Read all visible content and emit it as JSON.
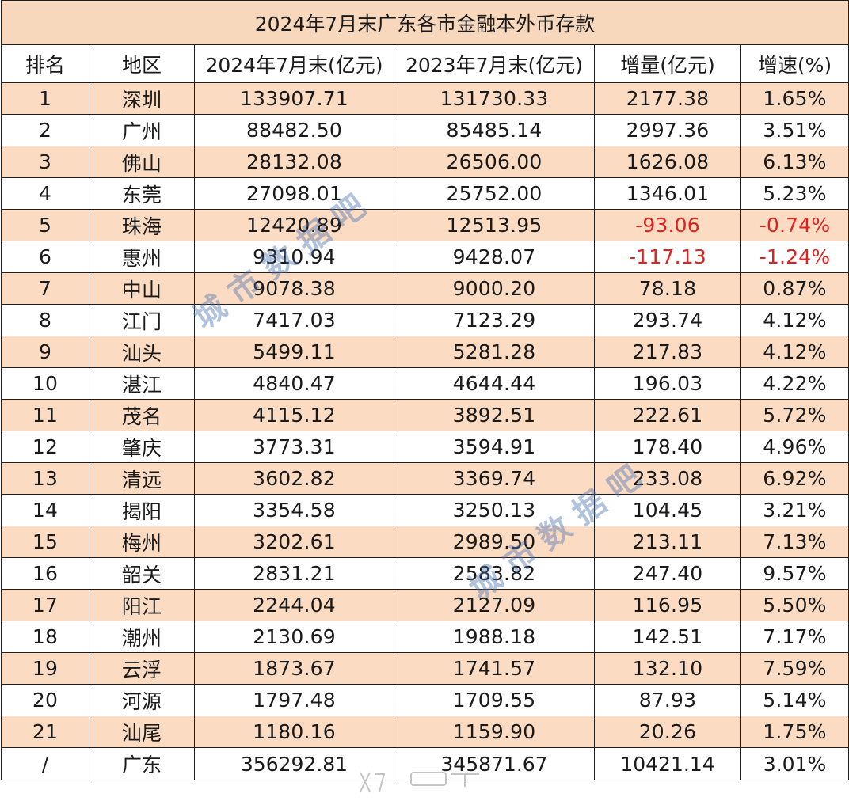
{
  "title": "2024年7月末广东各市金融本外币存款",
  "headers": [
    "排名",
    "地区",
    "2024年7月末(亿元)",
    "2023年7月末(亿元)",
    "增量(亿元)",
    "增速(%)"
  ],
  "rows": [
    {
      "rank": "1",
      "region": "深圳",
      "y2024": "133907.71",
      "y2023": "131730.33",
      "increase": "2177.38",
      "growth": "1.65%"
    },
    {
      "rank": "2",
      "region": "广州",
      "y2024": "88482.50",
      "y2023": "85485.14",
      "increase": "2997.36",
      "growth": "3.51%"
    },
    {
      "rank": "3",
      "region": "佛山",
      "y2024": "28132.08",
      "y2023": "26506.00",
      "increase": "1626.08",
      "growth": "6.13%"
    },
    {
      "rank": "4",
      "region": "东莞",
      "y2024": "27098.01",
      "y2023": "25752.00",
      "increase": "1346.01",
      "growth": "5.23%"
    },
    {
      "rank": "5",
      "region": "珠海",
      "y2024": "12420.89",
      "y2023": "12513.95",
      "increase": "-93.06",
      "growth": "-0.74%"
    },
    {
      "rank": "6",
      "region": "惠州",
      "y2024": "9310.94",
      "y2023": "9428.07",
      "increase": "-117.13",
      "growth": "-1.24%"
    },
    {
      "rank": "7",
      "region": "中山",
      "y2024": "9078.38",
      "y2023": "9000.20",
      "increase": "78.18",
      "growth": "0.87%"
    },
    {
      "rank": "8",
      "region": "江门",
      "y2024": "7417.03",
      "y2023": "7123.29",
      "increase": "293.74",
      "growth": "4.12%"
    },
    {
      "rank": "9",
      "region": "汕头",
      "y2024": "5499.11",
      "y2023": "5281.28",
      "increase": "217.83",
      "growth": "4.12%"
    },
    {
      "rank": "10",
      "region": "湛江",
      "y2024": "4840.47",
      "y2023": "4644.44",
      "increase": "196.03",
      "growth": "4.22%"
    },
    {
      "rank": "11",
      "region": "茂名",
      "y2024": "4115.12",
      "y2023": "3892.51",
      "increase": "222.61",
      "growth": "5.72%"
    },
    {
      "rank": "12",
      "region": "肇庆",
      "y2024": "3773.31",
      "y2023": "3594.91",
      "increase": "178.40",
      "growth": "4.96%"
    },
    {
      "rank": "13",
      "region": "清远",
      "y2024": "3602.82",
      "y2023": "3369.74",
      "increase": "233.08",
      "growth": "6.92%"
    },
    {
      "rank": "14",
      "region": "揭阳",
      "y2024": "3354.58",
      "y2023": "3250.13",
      "increase": "104.45",
      "growth": "3.21%"
    },
    {
      "rank": "15",
      "region": "梅州",
      "y2024": "3202.61",
      "y2023": "2989.50",
      "increase": "213.11",
      "growth": "7.13%"
    },
    {
      "rank": "16",
      "region": "韶关",
      "y2024": "2831.21",
      "y2023": "2583.82",
      "increase": "247.40",
      "growth": "9.57%"
    },
    {
      "rank": "17",
      "region": "阳江",
      "y2024": "2244.04",
      "y2023": "2127.09",
      "increase": "116.95",
      "growth": "5.50%"
    },
    {
      "rank": "18",
      "region": "潮州",
      "y2024": "2130.69",
      "y2023": "1988.18",
      "increase": "142.51",
      "growth": "7.17%"
    },
    {
      "rank": "19",
      "region": "云浮",
      "y2024": "1873.67",
      "y2023": "1741.57",
      "increase": "132.10",
      "growth": "7.59%"
    },
    {
      "rank": "20",
      "region": "河源",
      "y2024": "1797.48",
      "y2023": "1709.55",
      "increase": "87.93",
      "growth": "5.14%"
    },
    {
      "rank": "21",
      "region": "汕尾",
      "y2024": "1180.16",
      "y2023": "1159.90",
      "increase": "20.26",
      "growth": "1.75%"
    }
  ],
  "total": {
    "rank": "/",
    "region": "广东",
    "y2024": "356292.81",
    "y2023": "345871.67",
    "increase": "10421.14",
    "growth": "3.01%"
  },
  "watermark_text": "城市数据吧",
  "colors": {
    "title_bg": "#f8d8bd",
    "row_shade": "#fbdcc3",
    "negative": "#e0211d",
    "grid": "#1f1f1f",
    "watermark": "#466eaf"
  }
}
